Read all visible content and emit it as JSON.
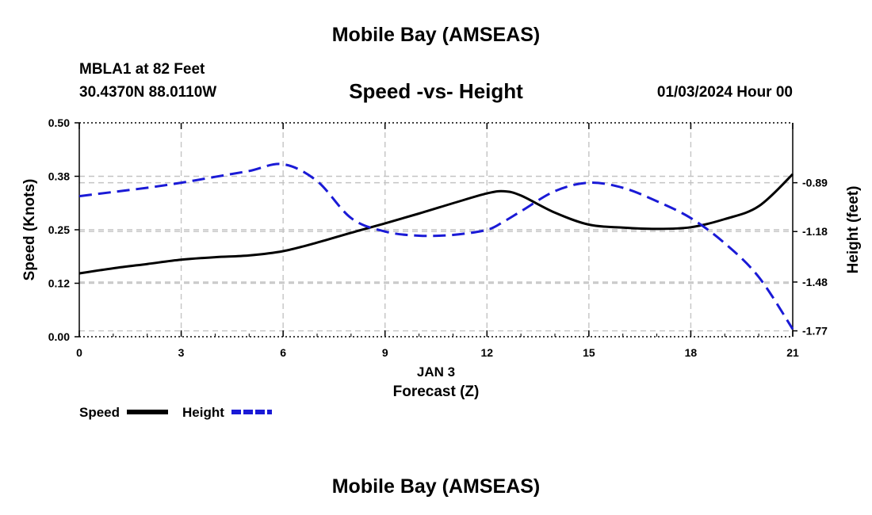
{
  "page": {
    "title": "Mobile Bay (AMSEAS)",
    "title_repeat": "Mobile Bay (AMSEAS)",
    "station": "MBLA1 at 82 Feet",
    "coords": "30.4370N  88.0110W",
    "subtitle": "Speed -vs- Height",
    "datetime": "01/03/2024 Hour 00"
  },
  "chart_data": {
    "type": "line",
    "title": "Speed -vs- Height",
    "xlabel": "Forecast (Z)",
    "xlabel_date": "JAN 3",
    "ylabel": "Speed (Knots)",
    "y2label": "Height (feet)",
    "xlim": [
      0,
      21
    ],
    "ylim": [
      0,
      0.5
    ],
    "y2lim": [
      -1.805,
      -0.534
    ],
    "grid": true,
    "x_ticks": [
      "0",
      "3",
      "6",
      "9",
      "12",
      "15",
      "18",
      "21"
    ],
    "x_tick_values": [
      0,
      3,
      6,
      9,
      12,
      15,
      18,
      21
    ],
    "y_ticks": [
      "0.00",
      "0.12",
      "0.25",
      "0.38",
      "0.50"
    ],
    "y_tick_values": [
      0,
      0.125,
      0.25,
      0.375,
      0.5
    ],
    "y2_ticks": [
      "-0.89",
      "-1.18",
      "-1.48",
      "-1.77"
    ],
    "y2_tick_values": [
      -0.89,
      -1.18,
      -1.48,
      -1.77
    ],
    "x": [
      0,
      1,
      2,
      3,
      4,
      5,
      6,
      7,
      8,
      9,
      10,
      11,
      12,
      12.5,
      13,
      14,
      15,
      16,
      17,
      18,
      19,
      20,
      21
    ],
    "series": [
      {
        "name": "Speed",
        "axis": "left",
        "color": "#000000",
        "style": "solid",
        "values": [
          0.148,
          0.16,
          0.17,
          0.18,
          0.186,
          0.19,
          0.2,
          0.22,
          0.243,
          0.265,
          0.288,
          0.312,
          0.335,
          0.34,
          0.33,
          0.29,
          0.262,
          0.255,
          0.252,
          0.256,
          0.275,
          0.305,
          0.38
        ]
      },
      {
        "name": "Height",
        "axis": "right",
        "color": "#1a1ad6",
        "style": "dashed",
        "values": [
          -0.97,
          -0.945,
          -0.92,
          -0.89,
          -0.855,
          -0.82,
          -0.78,
          -0.88,
          -1.1,
          -1.18,
          -1.205,
          -1.2,
          -1.17,
          -1.12,
          -1.06,
          -0.94,
          -0.89,
          -0.92,
          -1.0,
          -1.1,
          -1.25,
          -1.45,
          -1.76
        ]
      }
    ],
    "legend": [
      {
        "label": "Speed",
        "color": "#000000",
        "style": "solid"
      },
      {
        "label": "Height",
        "color": "#1a1ad6",
        "style": "dashed"
      }
    ]
  }
}
